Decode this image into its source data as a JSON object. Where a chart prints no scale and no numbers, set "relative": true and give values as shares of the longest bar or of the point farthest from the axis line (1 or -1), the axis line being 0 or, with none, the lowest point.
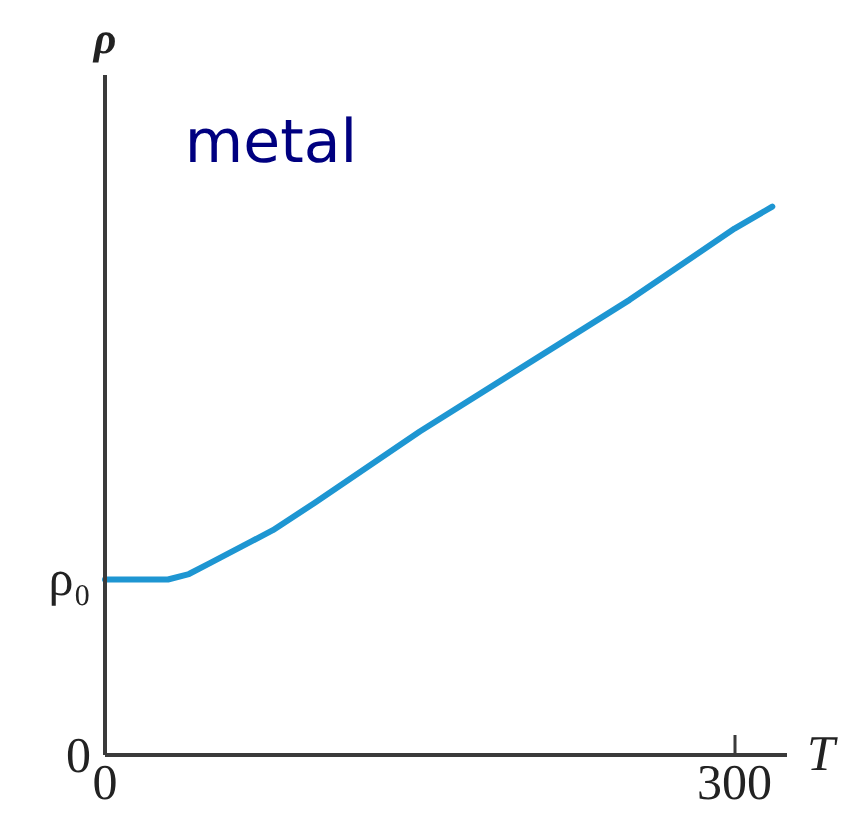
{
  "chart_data": {
    "type": "line",
    "title": "metal",
    "xlabel": "T",
    "ylabel": "ρ",
    "x": [
      0,
      10,
      20,
      30,
      40,
      50,
      60,
      70,
      80,
      100,
      150,
      200,
      250,
      300,
      318
    ],
    "values": [
      0.32,
      0.32,
      0.32,
      0.32,
      0.33,
      0.35,
      0.37,
      0.39,
      0.41,
      0.46,
      0.59,
      0.71,
      0.83,
      0.96,
      1.0
    ],
    "color": "#1e96d2",
    "relative": true,
    "xlim": [
      0,
      325
    ],
    "xticks": [
      0,
      300
    ],
    "annotations": [
      {
        "text": "ρ₀",
        "x": 0,
        "y": 0.32
      },
      "0"
    ]
  }
}
